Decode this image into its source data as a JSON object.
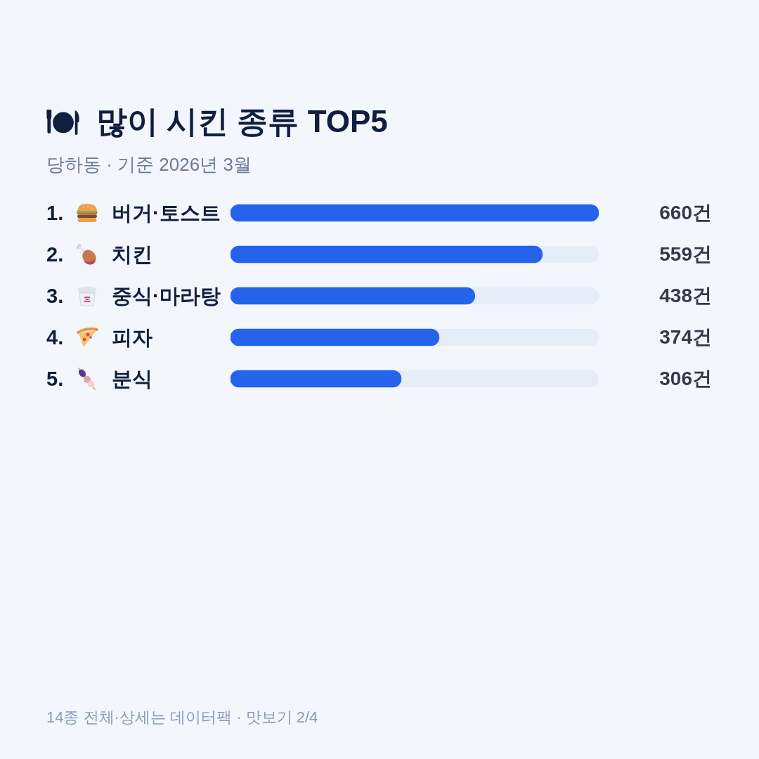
{
  "chart_data": {
    "type": "bar",
    "orientation": "horizontal",
    "title": "많이 시킨 종류 TOP5",
    "subtitle": "당하동 · 기준 2026년 3월",
    "categories": [
      "1. 버거·토스트",
      "2. 치킨",
      "3. 중식·마라탕",
      "4. 피자",
      "5. 분식"
    ],
    "values": [
      660,
      559,
      438,
      374,
      306
    ],
    "color": "#2563eb",
    "value_labels": [
      "660건",
      "559건",
      "438건",
      "374건",
      "306건"
    ],
    "xlim": [
      0,
      660
    ],
    "tick_labels": "y",
    "annotations": [
      "14종 전체·상세는 데이터팩 · 맛보기 2/4"
    ]
  }
}
